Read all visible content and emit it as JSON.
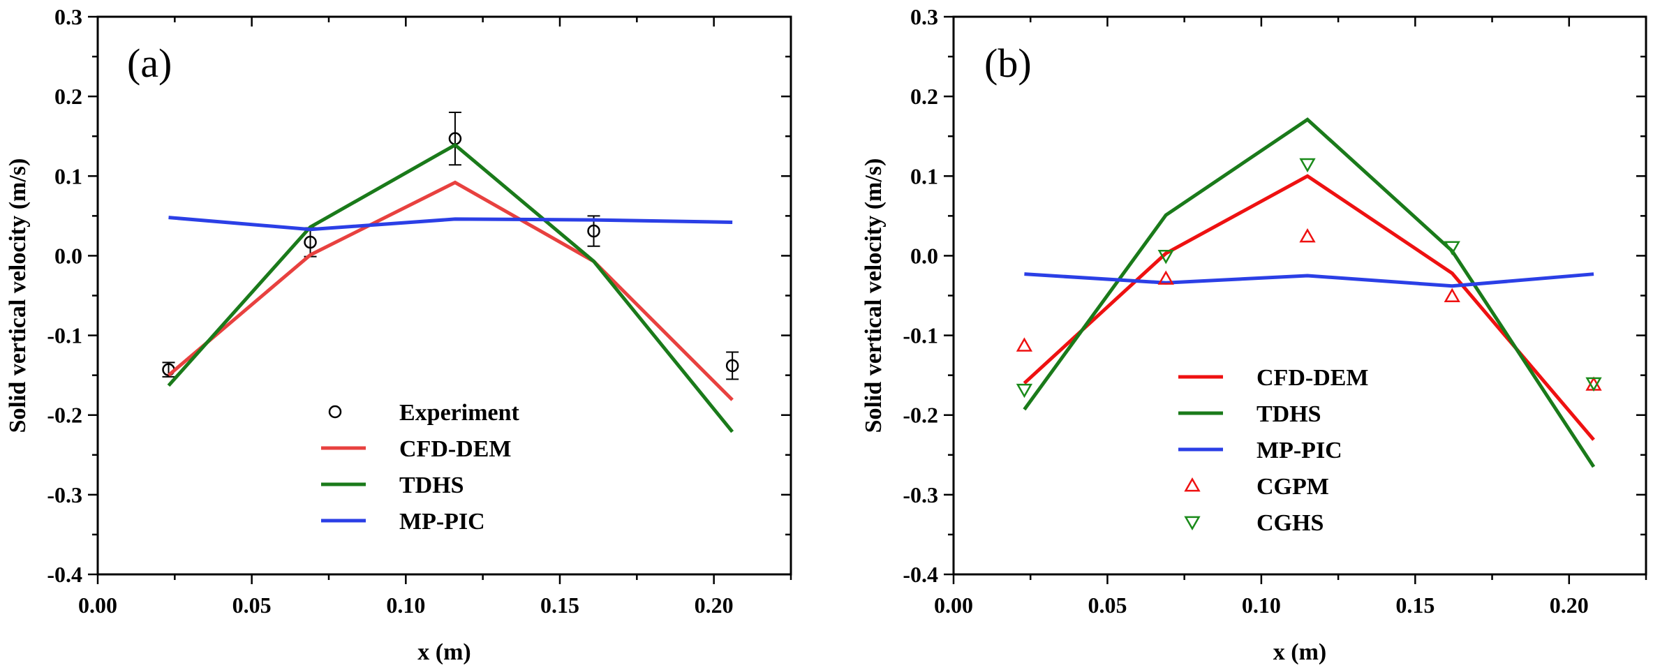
{
  "chart_data": [
    {
      "type": "line",
      "panel_label": "(a)",
      "xlabel": "x (m)",
      "ylabel": "Solid vertical velocity (m/s)",
      "xlim": [
        0.0,
        0.225
      ],
      "ylim": [
        -0.4,
        0.3
      ],
      "xticks": [
        "0.00",
        "0.05",
        "0.10",
        "0.15",
        "0.20"
      ],
      "yticks": [
        "-0.4",
        "-0.3",
        "-0.2",
        "-0.1",
        "0.0",
        "0.1",
        "0.2",
        "0.3"
      ],
      "legend_position": "bottom-center",
      "series": [
        {
          "name": "Experiment",
          "kind": "marker",
          "marker": "circle",
          "color": "#000000",
          "x": [
            0.023,
            0.069,
            0.116,
            0.161,
            0.206
          ],
          "y": [
            -0.143,
            0.017,
            0.147,
            0.031,
            -0.138
          ],
          "err": [
            0.009,
            0.018,
            0.033,
            0.019,
            0.017
          ]
        },
        {
          "name": "CFD-DEM",
          "kind": "line",
          "color": "#e8413f",
          "x": [
            0.023,
            0.069,
            0.116,
            0.161,
            0.206
          ],
          "y": [
            -0.15,
            0.001,
            0.092,
            -0.007,
            -0.181
          ]
        },
        {
          "name": "TDHS",
          "kind": "line",
          "color": "#1a7a1a",
          "x": [
            0.023,
            0.069,
            0.116,
            0.161,
            0.206
          ],
          "y": [
            -0.163,
            0.036,
            0.139,
            -0.007,
            -0.221
          ]
        },
        {
          "name": "MP-PIC",
          "kind": "line",
          "color": "#2b3fe6",
          "x": [
            0.023,
            0.069,
            0.116,
            0.161,
            0.206
          ],
          "y": [
            0.048,
            0.033,
            0.046,
            0.045,
            0.042
          ]
        }
      ]
    },
    {
      "type": "line",
      "panel_label": "(b)",
      "xlabel": "x (m)",
      "ylabel": "Solid vertical velocity (m/s)",
      "xlim": [
        0.0,
        0.225
      ],
      "ylim": [
        -0.4,
        0.3
      ],
      "xticks": [
        "0.00",
        "0.05",
        "0.10",
        "0.15",
        "0.20"
      ],
      "yticks": [
        "-0.4",
        "-0.3",
        "-0.2",
        "-0.1",
        "0.0",
        "0.1",
        "0.2",
        "0.3"
      ],
      "legend_position": "bottom-center",
      "series": [
        {
          "name": "CFD-DEM",
          "kind": "line",
          "color": "#ee1111",
          "x": [
            0.023,
            0.069,
            0.115,
            0.162,
            0.208
          ],
          "y": [
            -0.16,
            0.003,
            0.1,
            -0.022,
            -0.231
          ]
        },
        {
          "name": "TDHS",
          "kind": "line",
          "color": "#1a7a1a",
          "x": [
            0.023,
            0.069,
            0.115,
            0.162,
            0.208
          ],
          "y": [
            -0.193,
            0.051,
            0.171,
            0.006,
            -0.265
          ]
        },
        {
          "name": "MP-PIC",
          "kind": "line",
          "color": "#2b3fe6",
          "x": [
            0.023,
            0.069,
            0.115,
            0.162,
            0.208
          ],
          "y": [
            -0.023,
            -0.034,
            -0.025,
            -0.038,
            -0.023
          ]
        },
        {
          "name": "CGPM",
          "kind": "marker",
          "marker": "triangle-up",
          "color": "#ee1111",
          "x": [
            0.023,
            0.069,
            0.115,
            0.162,
            0.208
          ],
          "y": [
            -0.113,
            -0.029,
            0.024,
            -0.051,
            -0.162
          ]
        },
        {
          "name": "CGHS",
          "kind": "marker",
          "marker": "triangle-down",
          "color": "#1a8a1a",
          "x": [
            0.023,
            0.069,
            0.115,
            0.162,
            0.208
          ],
          "y": [
            -0.168,
            0.0,
            0.115,
            0.011,
            -0.16
          ]
        }
      ]
    }
  ]
}
